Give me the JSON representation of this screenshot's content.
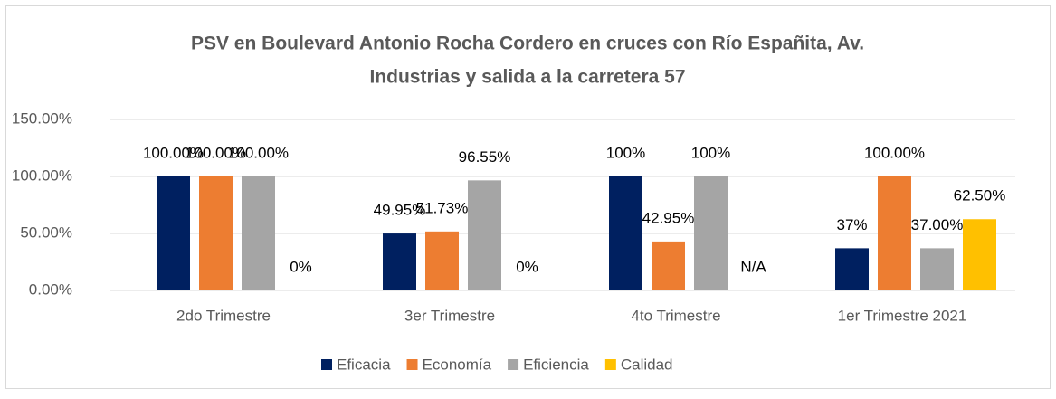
{
  "chart_data": {
    "type": "bar",
    "title": [
      "PSV en Boulevard Antonio Rocha Cordero en cruces con Río Españita, Av.",
      "Industrias y salida a la carretera 57"
    ],
    "categories": [
      "2do Trimestre",
      "3er Trimestre",
      "4to Trimestre",
      "1er Trimestre 2021"
    ],
    "series": [
      {
        "name": "Eficacia",
        "color": "#002060",
        "values": [
          100,
          49.95,
          100,
          37
        ],
        "value_labels": [
          "100.00%",
          "49.95%",
          "100%",
          "37%"
        ]
      },
      {
        "name": "Economía",
        "color": "#ed7d31",
        "values": [
          100,
          51.73,
          42.95,
          100
        ],
        "value_labels": [
          "100.00%",
          "51.73%",
          "42.95%",
          "100.00%"
        ]
      },
      {
        "name": "Eficiencia",
        "color": "#a5a5a5",
        "values": [
          100,
          96.55,
          100,
          37
        ],
        "value_labels": [
          "100.00%",
          "96.55%",
          "100%",
          "37.00%"
        ]
      },
      {
        "name": "Calidad",
        "color": "#ffc000",
        "values": [
          0,
          0,
          null,
          62.5
        ],
        "value_labels": [
          "0%",
          "0%",
          "N/A",
          "62.50%"
        ]
      }
    ],
    "ylim": [
      0,
      150
    ],
    "yticks": [
      {
        "value": 0,
        "label": "0.00%"
      },
      {
        "value": 50,
        "label": "50.00%"
      },
      {
        "value": 100,
        "label": "100.00%"
      },
      {
        "value": 150,
        "label": "150.00%"
      }
    ],
    "grid": true,
    "legend": "bottom"
  }
}
